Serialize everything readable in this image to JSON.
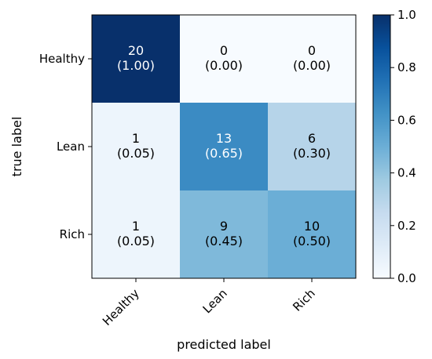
{
  "chart_data": {
    "type": "heatmap",
    "xlabel": "predicted label",
    "ylabel": "true label",
    "x_categories": [
      "Healthy",
      "Lean",
      "Rich"
    ],
    "y_categories": [
      "Healthy",
      "Lean",
      "Rich"
    ],
    "counts": [
      [
        20,
        0,
        0
      ],
      [
        1,
        13,
        6
      ],
      [
        1,
        9,
        10
      ]
    ],
    "fraction_labels": [
      [
        "(1.00)",
        "(0.00)",
        "(0.00)"
      ],
      [
        "(0.05)",
        "(0.65)",
        "(0.30)"
      ],
      [
        "(0.05)",
        "(0.45)",
        "(0.50)"
      ]
    ],
    "values": [
      [
        1.0,
        0.0,
        0.0
      ],
      [
        0.05,
        0.65,
        0.3
      ],
      [
        0.05,
        0.45,
        0.5
      ]
    ],
    "colorbar": {
      "range": [
        0.0,
        1.0
      ],
      "ticks": [
        "0.0",
        "0.2",
        "0.4",
        "0.6",
        "0.8",
        "1.0"
      ],
      "colormap": "Blues"
    },
    "grid": false
  }
}
